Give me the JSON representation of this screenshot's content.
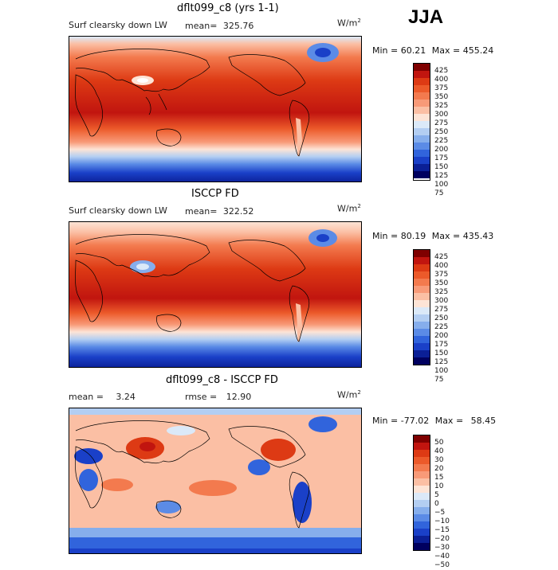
{
  "season": "JJA",
  "units_base": "W/m",
  "units_exp": "2",
  "panels": [
    {
      "title": "dflt099_c8 (yrs 1-1)",
      "variable": "Surf clearsky down LW",
      "mean_label": "mean=",
      "mean_value": "325.76",
      "min_label": "Min =",
      "min_value": "60.21",
      "max_label": "Max =",
      "max_value": "455.24",
      "ticks": [
        "425",
        "400",
        "375",
        "350",
        "325",
        "300",
        "275",
        "250",
        "225",
        "200",
        "175",
        "150",
        "125",
        "100",
        "75"
      ]
    },
    {
      "title": "ISCCP FD",
      "variable": "Surf clearsky down LW",
      "mean_label": "mean=",
      "mean_value": "322.52",
      "min_label": "Min =",
      "min_value": "80.19",
      "max_label": "Max =",
      "max_value": "435.43",
      "ticks": [
        "425",
        "400",
        "375",
        "350",
        "325",
        "300",
        "275",
        "250",
        "225",
        "200",
        "175",
        "150",
        "125",
        "100",
        "75"
      ]
    },
    {
      "title": "dflt099_c8 - ISCCP FD",
      "mean_label": "mean =",
      "mean_value": "3.24",
      "rmse_label": "rmse =",
      "rmse_value": "12.90",
      "min_label": "Min =",
      "min_value": "-77.02",
      "max_label": "Max =",
      "max_value": "58.45",
      "ticks": [
        "50",
        "40",
        "30",
        "20",
        "15",
        "10",
        "5",
        "0",
        "−5",
        "−10",
        "−15",
        "−20",
        "−30",
        "−40",
        "−50"
      ]
    }
  ],
  "palette": [
    "#7f0000",
    "#c1150f",
    "#dd3a14",
    "#ec5a2a",
    "#f37a4e",
    "#f89a78",
    "#fbbfa4",
    "#fde4d6",
    "#dbe9f8",
    "#b3cef2",
    "#86aeec",
    "#5b8be6",
    "#3164dc",
    "#1a40c8",
    "#0b1f96",
    "#00005f"
  ]
}
